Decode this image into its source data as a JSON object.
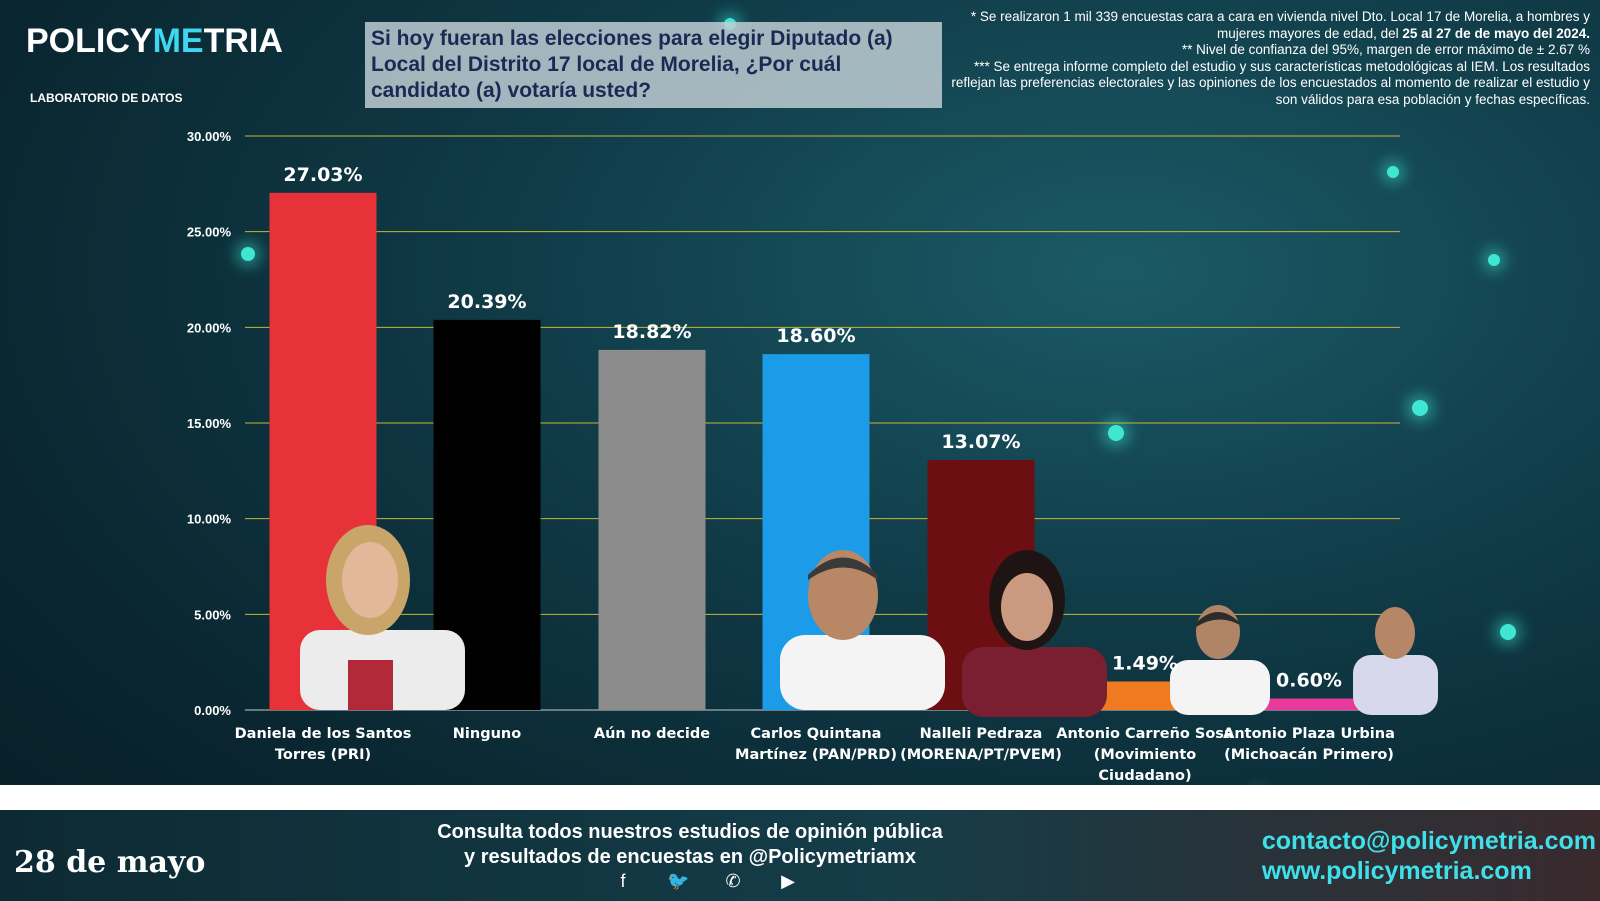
{
  "brand": {
    "name_part1": "POLICY",
    "name_part2": "ME",
    "name_part3": "TRIA",
    "subtitle": "LABORATORIO DE DATOS"
  },
  "question": "Si hoy fueran las elecciones para elegir Diputado (a) Local del Distrito 17 local de Morelia, ¿Por cuál candidato (a) votaría usted?",
  "notes": {
    "line1a": "* Se realizaron 1 mil 339 encuestas cara a cara en vivienda nivel Dto. Local 17 de Morelia, a hombres y mujeres mayores de edad, del ",
    "line1b": "25 al 27 de de mayo del 2024.",
    "line2": "** Nivel de confianza del 95%, margen de error máximo de ± 2.67 %",
    "line3": "*** Se entrega informe completo del estudio y sus características metodológicas al IEM. Los resultados reflejan las preferencias electorales y las opiniones de los encuestados al momento de realizar el estudio y son válidos para esa población y fechas específicas."
  },
  "chart_data": {
    "type": "bar",
    "ylim": [
      0,
      30
    ],
    "yticks": [
      "0.00%",
      "5.00%",
      "10.00%",
      "15.00%",
      "20.00%",
      "25.00%",
      "30.00%"
    ],
    "grid": true,
    "categories": [
      [
        "Daniela de los Santos",
        "Torres (PRI)"
      ],
      [
        "Ninguno"
      ],
      [
        "Aún no decide"
      ],
      [
        "Carlos Quintana",
        "Martínez (PAN/PRD)"
      ],
      [
        "Nalleli Pedraza",
        "(MORENA/PT/PVEM)"
      ],
      [
        "Antonio Carreño Sosa",
        "(Movimiento",
        "Ciudadano)"
      ],
      [
        "Antonio Plaza Urbina",
        "(Michoacán Primero)"
      ]
    ],
    "values": [
      27.03,
      20.39,
      18.82,
      18.6,
      13.07,
      1.49,
      0.6
    ],
    "value_labels": [
      "27.03%",
      "20.39%",
      "18.82%",
      "18.60%",
      "13.07%",
      "1.49%",
      "0.60%"
    ],
    "colors": [
      "#e8323a",
      "#000000",
      "#8c8c8c",
      "#1b9be8",
      "#6b0f12",
      "#f07a20",
      "#e83a9a"
    ]
  },
  "footer": {
    "date": "28 de mayo",
    "cta_line1": "Consulta todos nuestros estudios de opinión pública",
    "cta_line2": "y resultados de encuestas en @Policymetriamx",
    "social_icons": [
      "facebook-icon",
      "twitter-icon",
      "whatsapp-icon",
      "youtube-icon"
    ],
    "email": "contacto@policymetria.com",
    "website": "www.policymetria.com"
  }
}
